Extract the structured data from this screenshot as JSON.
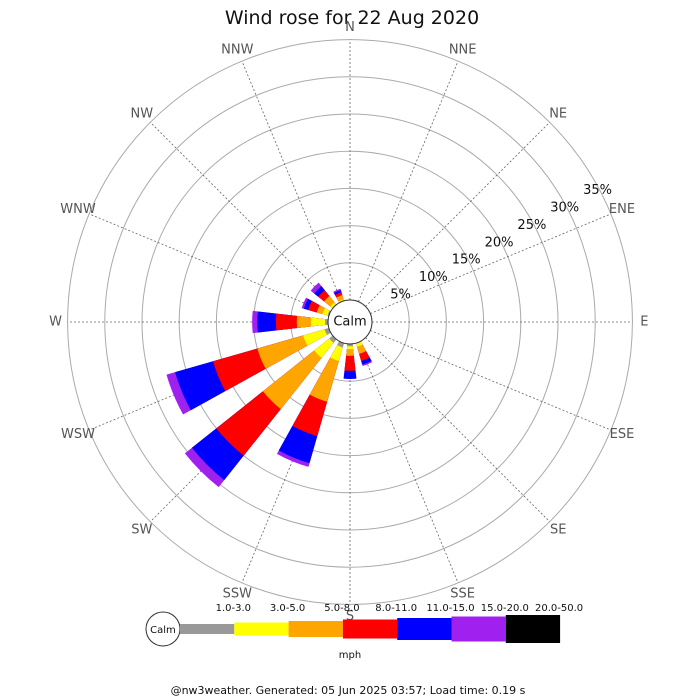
{
  "chart_data": {
    "type": "wind-rose",
    "title": "Wind rose for 22 Aug 2020",
    "directions": [
      "N",
      "NNE",
      "NE",
      "ENE",
      "E",
      "ESE",
      "SE",
      "SSE",
      "S",
      "SSW",
      "SW",
      "WSW",
      "W",
      "WNW",
      "NW",
      "NNW"
    ],
    "radial_ticks": [
      "5%",
      "10%",
      "15%",
      "20%",
      "25%",
      "30%",
      "35%"
    ],
    "radial_tick_values": [
      5,
      10,
      15,
      20,
      25,
      30,
      35
    ],
    "radial_max": 35,
    "calm_label": "Calm",
    "unit": "mph",
    "speed_bins": [
      "1.0-3.0",
      "3.0-5.0",
      "5.0-8.0",
      "8.0-11.0",
      "11.0-15.0",
      "15.0-20.0",
      "20.0-50.0"
    ],
    "bin_colors": [
      "#999999",
      "#ffff00",
      "#ffa500",
      "#ff0000",
      "#0000ff",
      "#a020f0",
      "#000000"
    ],
    "series": [
      {
        "direction": "SSE",
        "cumulative": [
          0.0,
          0.5,
          1.5,
          2.5,
          3.0,
          3.2,
          3.2
        ]
      },
      {
        "direction": "S",
        "cumulative": [
          0.3,
          0.7,
          1.6,
          3.6,
          4.7,
          4.7,
          4.7
        ]
      },
      {
        "direction": "SSW",
        "cumulative": [
          0.6,
          2.5,
          8.2,
          13.0,
          16.8,
          17.3,
          17.3
        ]
      },
      {
        "direction": "SW",
        "cumulative": [
          0.6,
          3.2,
          12.0,
          20.0,
          24.2,
          25.4,
          25.4
        ]
      },
      {
        "direction": "WSW",
        "cumulative": [
          0.6,
          3.6,
          10.0,
          16.2,
          21.5,
          22.7,
          22.7
        ]
      },
      {
        "direction": "W",
        "cumulative": [
          0.4,
          2.3,
          4.2,
          7.0,
          9.5,
          10.2,
          10.2
        ]
      },
      {
        "direction": "WNW",
        "cumulative": [
          0.2,
          0.9,
          1.7,
          2.9,
          3.5,
          3.8,
          3.8
        ]
      },
      {
        "direction": "NW",
        "cumulative": [
          0.1,
          0.4,
          1.5,
          2.5,
          3.2,
          3.8,
          3.8
        ]
      },
      {
        "direction": "NNW",
        "cumulative": [
          0.0,
          0.2,
          0.8,
          1.2,
          1.5,
          1.7,
          1.7
        ]
      }
    ]
  },
  "footer": "@nw3weather. Generated: 05 Jun 2025 03:57; Load time: 0.19 s"
}
